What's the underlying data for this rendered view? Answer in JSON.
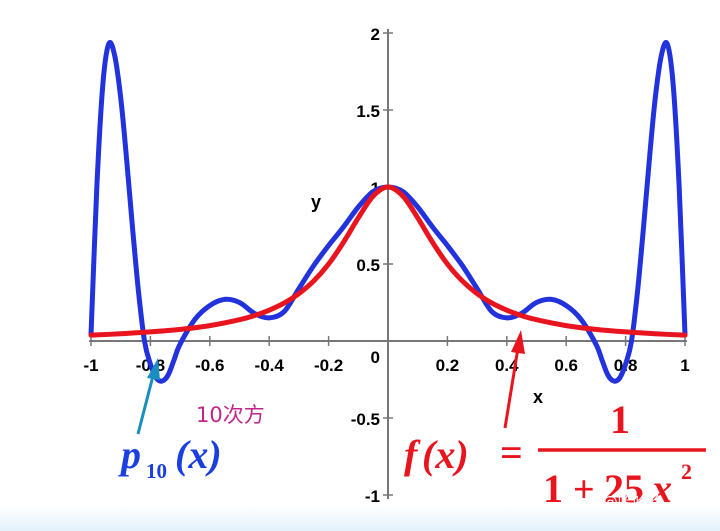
{
  "chart_data": {
    "type": "line",
    "xlabel": "x",
    "ylabel": "y",
    "xlim": [
      -1,
      1
    ],
    "ylim": [
      -1,
      2
    ],
    "x_ticks": [
      -1,
      -0.8,
      -0.6,
      -0.4,
      -0.2,
      0.2,
      0.4,
      0.6,
      0.8,
      1
    ],
    "x_tick_labels": [
      "-1",
      "-0.8",
      "-0.6",
      "-0.4",
      "-0.2",
      "0.2",
      "0.4",
      "0.6",
      "0.8",
      "1"
    ],
    "y_ticks": [
      -1,
      -0.5,
      0,
      0.5,
      1,
      1.5,
      2
    ],
    "y_tick_labels": [
      "-1",
      "-0.5",
      "0",
      "0.5",
      "1",
      "1.5",
      "2"
    ],
    "series": [
      {
        "color": "#2233dd",
        "x": [
          -1,
          -0.98,
          -0.96,
          -0.94,
          -0.92,
          -0.9,
          -0.88,
          -0.86,
          -0.84,
          -0.82,
          -0.8,
          -0.78,
          -0.76,
          -0.74,
          -0.72,
          -0.7,
          -0.65,
          -0.6,
          -0.55,
          -0.5,
          -0.45,
          -0.4,
          -0.35,
          -0.3,
          -0.25,
          -0.2,
          -0.15,
          -0.1,
          -0.05,
          0,
          0.05,
          0.1,
          0.15,
          0.2,
          0.25,
          0.3,
          0.35,
          0.4,
          0.45,
          0.5,
          0.55,
          0.6,
          0.65,
          0.7,
          0.72,
          0.74,
          0.76,
          0.78,
          0.8,
          0.82,
          0.84,
          0.86,
          0.88,
          0.9,
          0.92,
          0.94,
          0.96,
          0.98,
          1
        ],
        "y": [
          0.04,
          1.01,
          1.67,
          1.93,
          1.85,
          1.58,
          1.18,
          0.73,
          0.32,
          0.0,
          -0.15,
          -0.24,
          -0.26,
          -0.22,
          -0.12,
          -0.02,
          0.14,
          0.23,
          0.27,
          0.25,
          0.18,
          0.15,
          0.19,
          0.34,
          0.49,
          0.62,
          0.74,
          0.87,
          0.97,
          1.0,
          0.97,
          0.87,
          0.74,
          0.62,
          0.49,
          0.34,
          0.19,
          0.15,
          0.18,
          0.25,
          0.27,
          0.23,
          0.14,
          -0.02,
          -0.12,
          -0.22,
          -0.26,
          -0.24,
          -0.15,
          0.0,
          0.32,
          0.73,
          1.18,
          1.58,
          1.85,
          1.93,
          1.67,
          1.01,
          0.04
        ]
      },
      {
        "color": "#e8141e",
        "x": [
          -1,
          -0.9,
          -0.8,
          -0.7,
          -0.6,
          -0.5,
          -0.45,
          -0.4,
          -0.35,
          -0.3,
          -0.25,
          -0.2,
          -0.15,
          -0.1,
          -0.05,
          0,
          0.05,
          0.1,
          0.15,
          0.2,
          0.25,
          0.3,
          0.35,
          0.4,
          0.45,
          0.5,
          0.6,
          0.7,
          0.8,
          0.9,
          1
        ],
        "y": [
          0.038,
          0.047,
          0.059,
          0.075,
          0.1,
          0.138,
          0.165,
          0.2,
          0.246,
          0.308,
          0.39,
          0.5,
          0.64,
          0.8,
          0.941,
          1.0,
          0.941,
          0.8,
          0.64,
          0.5,
          0.39,
          0.308,
          0.246,
          0.2,
          0.165,
          0.138,
          0.1,
          0.075,
          0.059,
          0.047,
          0.038
        ]
      }
    ]
  },
  "annotations": {
    "degree_note": "10次方",
    "poly_label": {
      "p": "p",
      "sub": "10",
      "arg": "(x)"
    },
    "func_label": {
      "lhs": "f",
      "arg": "(x)",
      "eq": "=",
      "numerator": "1",
      "den_one": "1",
      "den_plus": "+",
      "den_coef": "25",
      "den_var": "x",
      "den_exp": "2"
    }
  },
  "colors": {
    "poly_curve": "#2233dd",
    "runge_curve": "#e8141e",
    "annotation_blue": "#1a3fe0",
    "annotation_red": "#e8141e",
    "note_magenta": "#c2258a",
    "arrow_teal": "#1a8fbf"
  },
  "watermark": "知乎 @哈哈哈"
}
